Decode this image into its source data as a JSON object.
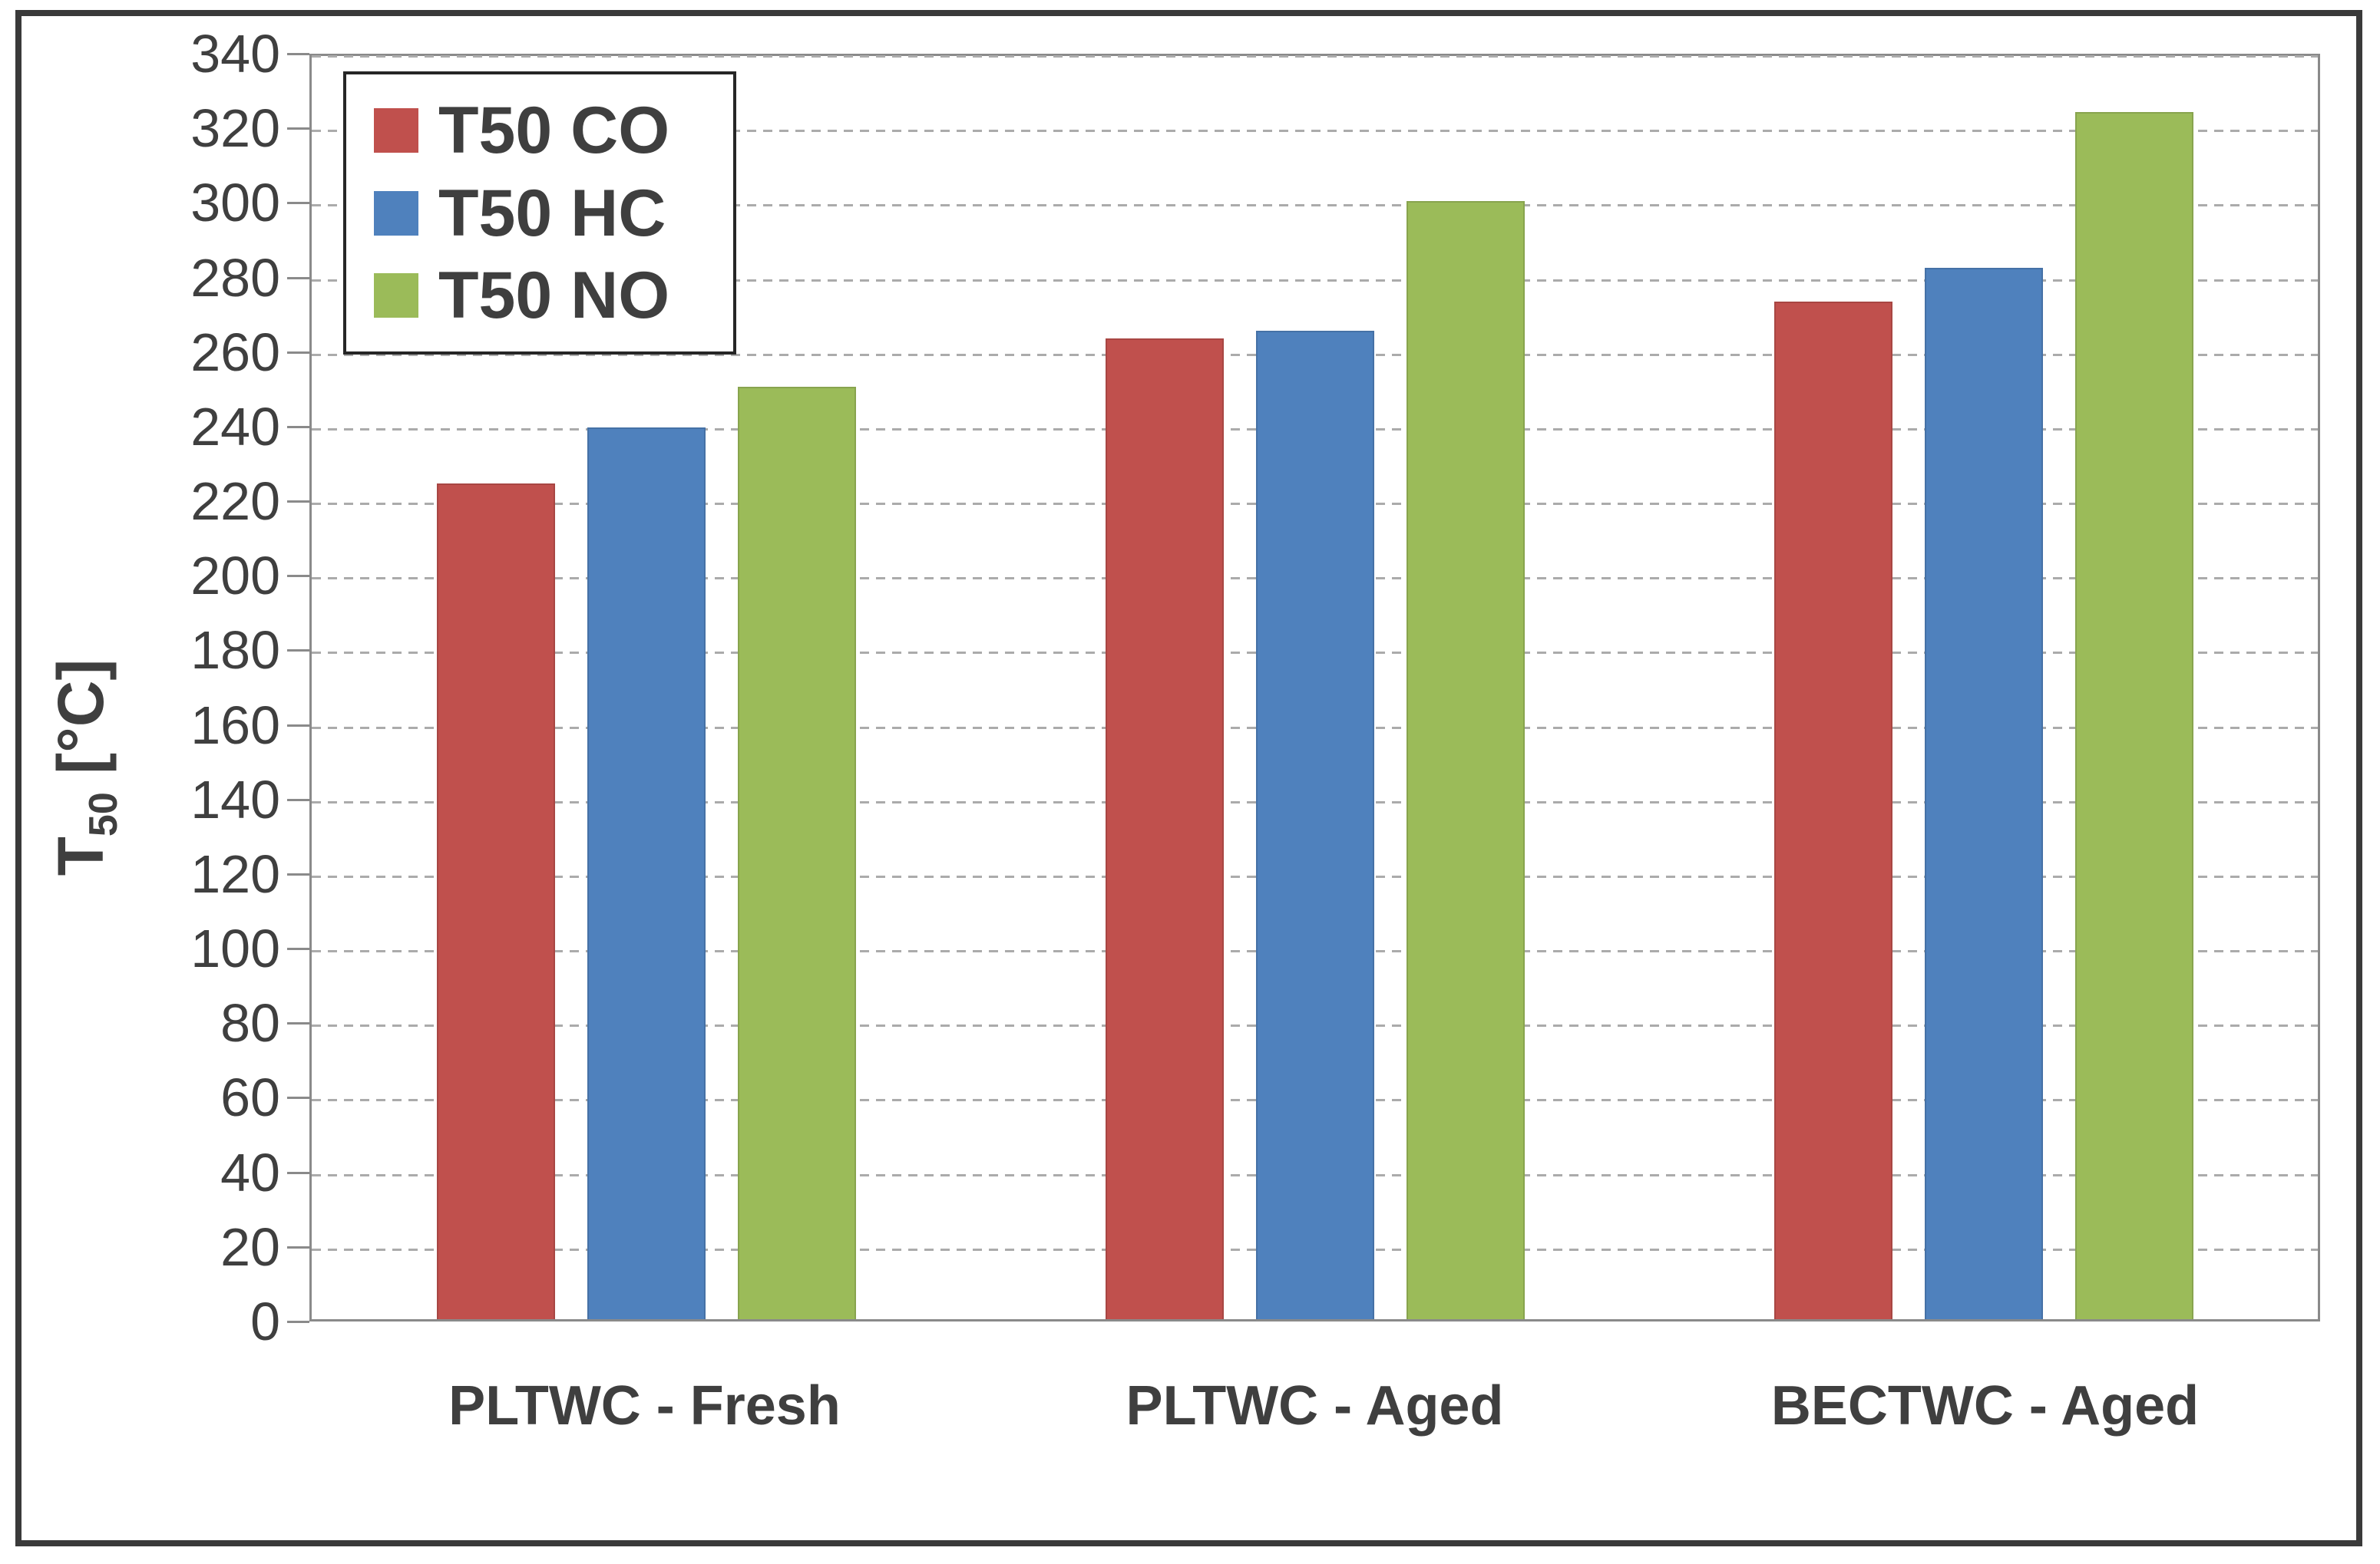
{
  "chart_data": {
    "type": "bar",
    "title": "",
    "categories": [
      "PLTWC - Fresh",
      "PLTWC - Aged",
      "BECTWC - Aged"
    ],
    "series": [
      {
        "name": "T50 CO",
        "color": "#C0504D",
        "values": [
          225,
          264,
          274
        ]
      },
      {
        "name": "T50 HC",
        "color": "#4F81BD",
        "values": [
          240,
          266,
          283
        ]
      },
      {
        "name": "T50 NO",
        "color": "#9BBB59",
        "values": [
          251,
          301,
          325
        ]
      }
    ],
    "xlabel": "",
    "ylabel": "T50 [°C]",
    "ylabel_parts": {
      "base": "T",
      "sub": "50",
      "unit": " [°C]"
    },
    "ylim": [
      0,
      340
    ],
    "ytick_step": 20,
    "yticks": [
      0,
      20,
      40,
      60,
      80,
      100,
      120,
      140,
      160,
      180,
      200,
      220,
      240,
      260,
      280,
      300,
      320,
      340
    ],
    "grid": "horizontal-dashed",
    "legend_position": "top-left"
  },
  "colors": {
    "frame_border": "#3a3a3a",
    "plot_border": "#8a8a8a",
    "gridline": "#ababab",
    "text": "#3f3f3f",
    "legend_border": "#262626",
    "background": "#ffffff"
  }
}
